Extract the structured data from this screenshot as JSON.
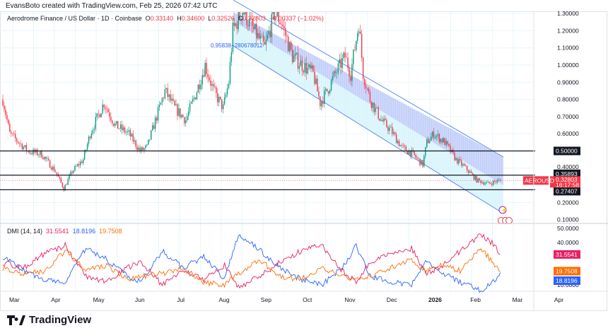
{
  "credit": "EvansBoto created with TradingView.com, Feb 25, 2026 07:42 UTC",
  "legend": {
    "symbol": "Aerodrome Finance / US Dollar · 1D · Coinbase",
    "o_label": "O",
    "o": "0.33140",
    "h_label": "H",
    "h": "0.34600",
    "l_label": "L",
    "l": "0.32526",
    "c_label": "C",
    "c": "0.32803",
    "change": "−0.00337 (−1.02%)"
  },
  "channel_label": "0.95838+280678012",
  "ticker_tag": "AEROUSD",
  "price_tag": {
    "price": "0.32803",
    "countdown": "16:17:58"
  },
  "levels": [
    {
      "value": 0.5,
      "label": "0.50000"
    },
    {
      "value": 0.35893,
      "label": "0.35893"
    },
    {
      "value": 0.27407,
      "label": "0.27407"
    }
  ],
  "dmi": {
    "title": "DMI (14, 14)",
    "plus_di": "18.8196",
    "minus_di": "31.5541",
    "adx": "19.7508"
  },
  "colors": {
    "up": "#089981",
    "down": "#f23645",
    "plus_di": "#2962ff",
    "minus_di": "#e91e63",
    "adx": "#ff6d00"
  },
  "brand": "TradingView",
  "chart_data": {
    "type": "candlestick",
    "title": "Aerodrome Finance / US Dollar · 1D · Coinbase",
    "price_axis_ticks": [
      "1.30000",
      "1.20000",
      "1.10000",
      "1.00000",
      "0.90000",
      "0.80000",
      "0.70000",
      "0.60000",
      "0.40000",
      "0.20000",
      "0.10000"
    ],
    "price_ylim": [
      0.08,
      1.33
    ],
    "dmi_axis_ticks": [
      "50.0000",
      "40.0000",
      "10.0000"
    ],
    "dmi_ylim": [
      0,
      54
    ],
    "time_ticks": [
      "Mar",
      "Apr",
      "May",
      "Jun",
      "Jul",
      "Aug",
      "Sep",
      "Oct",
      "Nov",
      "Dec",
      "2026",
      "Feb",
      "Mar",
      "Apr"
    ],
    "start": "2025-02-22",
    "close_keypoints": [
      [
        0,
        0.8
      ],
      [
        5,
        0.6
      ],
      [
        18,
        0.5
      ],
      [
        28,
        0.48
      ],
      [
        38,
        0.38
      ],
      [
        44,
        0.28
      ],
      [
        50,
        0.38
      ],
      [
        58,
        0.45
      ],
      [
        63,
        0.6
      ],
      [
        73,
        0.78
      ],
      [
        81,
        0.65
      ],
      [
        91,
        0.6
      ],
      [
        99,
        0.5
      ],
      [
        104,
        0.52
      ],
      [
        109,
        0.65
      ],
      [
        117,
        0.85
      ],
      [
        124,
        0.75
      ],
      [
        132,
        0.68
      ],
      [
        140,
        0.85
      ],
      [
        146,
        1.0
      ],
      [
        152,
        0.85
      ],
      [
        159,
        0.75
      ],
      [
        163,
        0.9
      ],
      [
        166,
        1.2
      ],
      [
        173,
        1.32
      ],
      [
        181,
        1.2
      ],
      [
        189,
        1.1
      ],
      [
        196,
        1.3
      ],
      [
        201,
        1.25
      ],
      [
        209,
        1.05
      ],
      [
        216,
        1.0
      ],
      [
        224,
        0.95
      ],
      [
        229,
        0.78
      ],
      [
        234,
        0.85
      ],
      [
        240,
        0.95
      ],
      [
        247,
        1.05
      ],
      [
        251,
        0.95
      ],
      [
        255,
        1.15
      ],
      [
        257,
        1.25
      ],
      [
        260,
        0.95
      ],
      [
        265,
        0.8
      ],
      [
        273,
        0.68
      ],
      [
        280,
        0.62
      ],
      [
        288,
        0.52
      ],
      [
        296,
        0.48
      ],
      [
        303,
        0.42
      ],
      [
        306,
        0.55
      ],
      [
        311,
        0.6
      ],
      [
        319,
        0.55
      ],
      [
        327,
        0.45
      ],
      [
        334,
        0.4
      ],
      [
        342,
        0.33
      ],
      [
        350,
        0.31
      ],
      [
        359,
        0.328
      ]
    ],
    "plus_di_keypoints": [
      [
        0,
        30
      ],
      [
        15,
        20
      ],
      [
        30,
        14
      ],
      [
        45,
        12
      ],
      [
        60,
        36
      ],
      [
        75,
        28
      ],
      [
        90,
        16
      ],
      [
        100,
        12
      ],
      [
        115,
        34
      ],
      [
        130,
        22
      ],
      [
        145,
        30
      ],
      [
        160,
        14
      ],
      [
        170,
        46
      ],
      [
        185,
        35
      ],
      [
        200,
        22
      ],
      [
        215,
        14
      ],
      [
        230,
        10
      ],
      [
        245,
        22
      ],
      [
        255,
        38
      ],
      [
        265,
        16
      ],
      [
        280,
        12
      ],
      [
        295,
        10
      ],
      [
        305,
        26
      ],
      [
        315,
        20
      ],
      [
        330,
        12
      ],
      [
        345,
        6
      ],
      [
        355,
        14
      ],
      [
        359,
        18.82
      ]
    ],
    "minus_di_keypoints": [
      [
        0,
        26
      ],
      [
        15,
        22
      ],
      [
        30,
        32
      ],
      [
        45,
        38
      ],
      [
        60,
        16
      ],
      [
        75,
        12
      ],
      [
        90,
        22
      ],
      [
        100,
        26
      ],
      [
        115,
        10
      ],
      [
        130,
        20
      ],
      [
        145,
        14
      ],
      [
        160,
        24
      ],
      [
        170,
        8
      ],
      [
        185,
        16
      ],
      [
        200,
        26
      ],
      [
        215,
        34
      ],
      [
        230,
        38
      ],
      [
        245,
        20
      ],
      [
        255,
        12
      ],
      [
        265,
        26
      ],
      [
        280,
        32
      ],
      [
        295,
        36
      ],
      [
        305,
        18
      ],
      [
        315,
        22
      ],
      [
        330,
        34
      ],
      [
        345,
        46
      ],
      [
        355,
        38
      ],
      [
        359,
        31.55
      ]
    ],
    "adx_keypoints": [
      [
        0,
        22
      ],
      [
        15,
        18
      ],
      [
        30,
        20
      ],
      [
        45,
        34
      ],
      [
        60,
        20
      ],
      [
        75,
        24
      ],
      [
        90,
        14
      ],
      [
        100,
        16
      ],
      [
        115,
        18
      ],
      [
        130,
        22
      ],
      [
        145,
        12
      ],
      [
        160,
        10
      ],
      [
        170,
        18
      ],
      [
        185,
        28
      ],
      [
        200,
        16
      ],
      [
        215,
        14
      ],
      [
        230,
        22
      ],
      [
        245,
        16
      ],
      [
        255,
        14
      ],
      [
        265,
        16
      ],
      [
        280,
        22
      ],
      [
        295,
        28
      ],
      [
        305,
        20
      ],
      [
        315,
        24
      ],
      [
        330,
        20
      ],
      [
        345,
        36
      ],
      [
        355,
        24
      ],
      [
        359,
        19.75
      ]
    ]
  }
}
